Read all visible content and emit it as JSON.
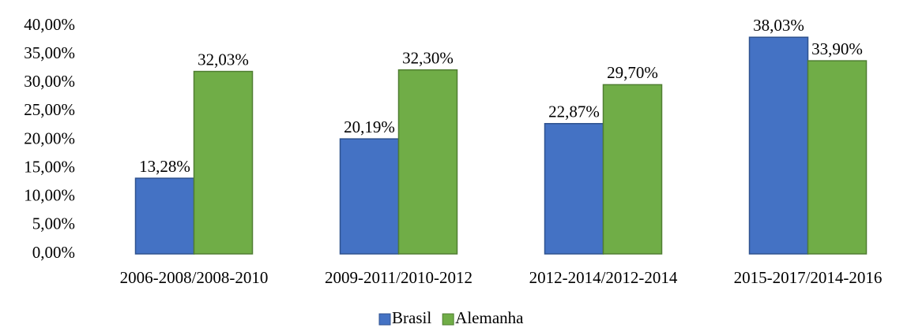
{
  "chart_data": {
    "type": "bar",
    "categories": [
      "2006-2008/2008-2010",
      "2009-2011/2010-2012",
      "2012-2014/2012-2014",
      "2015-2017/2014-2016"
    ],
    "series": [
      {
        "name": "Brasil",
        "color": "#4472c4",
        "values": [
          13.28,
          20.19,
          22.87,
          38.03
        ],
        "value_labels": [
          "13,28%",
          "20,19%",
          "22,87%",
          "38,03%"
        ]
      },
      {
        "name": "Alemanha",
        "color": "#70ad47",
        "values": [
          32.03,
          32.3,
          29.7,
          33.9
        ],
        "value_labels": [
          "32,03%",
          "32,30%",
          "29,70%",
          "33,90%"
        ]
      }
    ],
    "ylim": [
      0,
      40
    ],
    "yticks": [
      {
        "value": 0,
        "label": "0,00%"
      },
      {
        "value": 5,
        "label": "5,00%"
      },
      {
        "value": 10,
        "label": "10,00%"
      },
      {
        "value": 15,
        "label": "15,00%"
      },
      {
        "value": 20,
        "label": "20,00%"
      },
      {
        "value": 25,
        "label": "25,00%"
      },
      {
        "value": 30,
        "label": "30,00%"
      },
      {
        "value": 35,
        "label": "35,00%"
      },
      {
        "value": 40,
        "label": "40,00%"
      }
    ],
    "grid": false,
    "legend": "bottom"
  }
}
